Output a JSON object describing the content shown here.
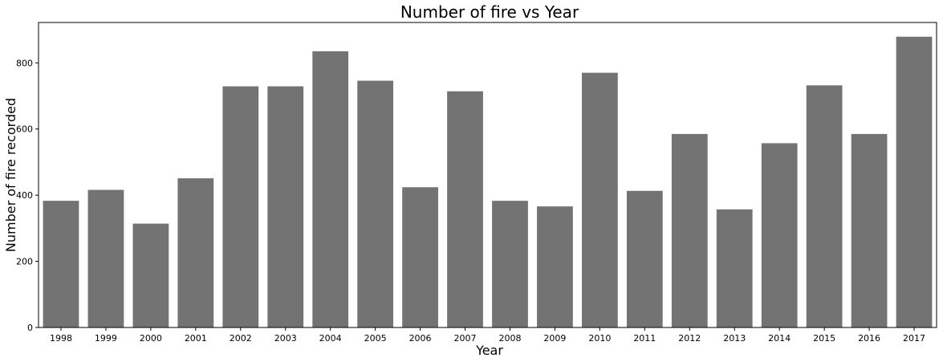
{
  "chart_data": {
    "type": "bar",
    "title": "Number of fire vs Year",
    "xlabel": "Year",
    "ylabel": "Number of fire recorded",
    "categories": [
      "1998",
      "1999",
      "2000",
      "2001",
      "2002",
      "2003",
      "2004",
      "2005",
      "2006",
      "2007",
      "2008",
      "2009",
      "2010",
      "2011",
      "2012",
      "2013",
      "2014",
      "2015",
      "2016",
      "2017"
    ],
    "values": [
      383,
      416,
      314,
      451,
      729,
      729,
      835,
      746,
      424,
      714,
      383,
      366,
      770,
      413,
      585,
      357,
      557,
      732,
      585,
      879
    ],
    "ylim": [
      0,
      922
    ],
    "yticks": [
      0,
      200,
      400,
      600,
      800
    ],
    "grid": false,
    "bar_color": "#737373"
  }
}
